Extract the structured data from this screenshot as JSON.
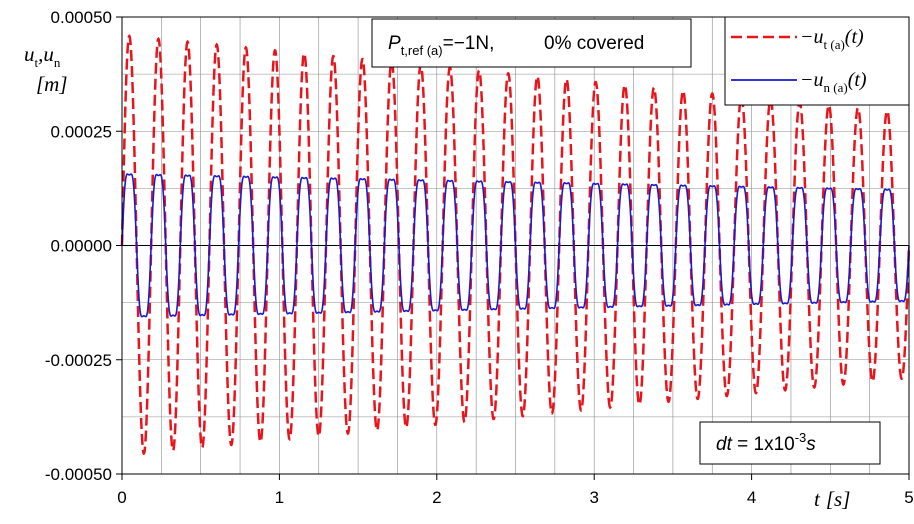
{
  "chart_data": {
    "type": "line",
    "x_range": [
      0,
      5
    ],
    "y_range": [
      -0.0005,
      0.0005
    ],
    "y_ticks": [
      "0.00050",
      "0.00025",
      "0.00000",
      "-0.00025",
      "-0.00050"
    ],
    "y_tick_values": [
      0.0005,
      0.00025,
      0,
      -0.00025,
      -0.0005
    ],
    "x_ticks": [
      "0",
      "1",
      "2",
      "3",
      "4",
      "5"
    ],
    "x_tick_values": [
      0,
      1,
      2,
      3,
      4,
      5
    ],
    "grid": true,
    "legend_position": "top-right",
    "ylabel": {
      "text": "u",
      "sub1": "t",
      "sep": ",u",
      "sub2": "n",
      "unit": "[m]"
    },
    "xlabel": {
      "var": "t",
      "unit": "[s]"
    },
    "annotation_top": {
      "p": "P",
      "sub": "t,ref (a)",
      "rest": "=−1N,",
      "covered": "0% covered"
    },
    "annotation_bottom": {
      "dt": "dt",
      "eq": " = 1x10",
      "exp": "-3",
      "unit": "s"
    },
    "series": [
      {
        "name": "−u",
        "name_sub": "t (a)",
        "name_tail": "(t)",
        "color": "#e8141c",
        "style": "dashed",
        "frequency_hz": 5.4,
        "amplitude_start": 0.00046,
        "amplitude_end": 0.00029,
        "harmonic_ratio": 0,
        "harmonic_freq_ratio": 0
      },
      {
        "name": "−u",
        "name_sub": "n (a)",
        "name_tail": "(t)",
        "color": "#1a1ad1",
        "style": "solid",
        "frequency_hz": 5.4,
        "amplitude_start": 0.00018,
        "amplitude_end": 0.00014,
        "harmonic_ratio": 0.14,
        "harmonic_freq_ratio": 3
      }
    ]
  }
}
